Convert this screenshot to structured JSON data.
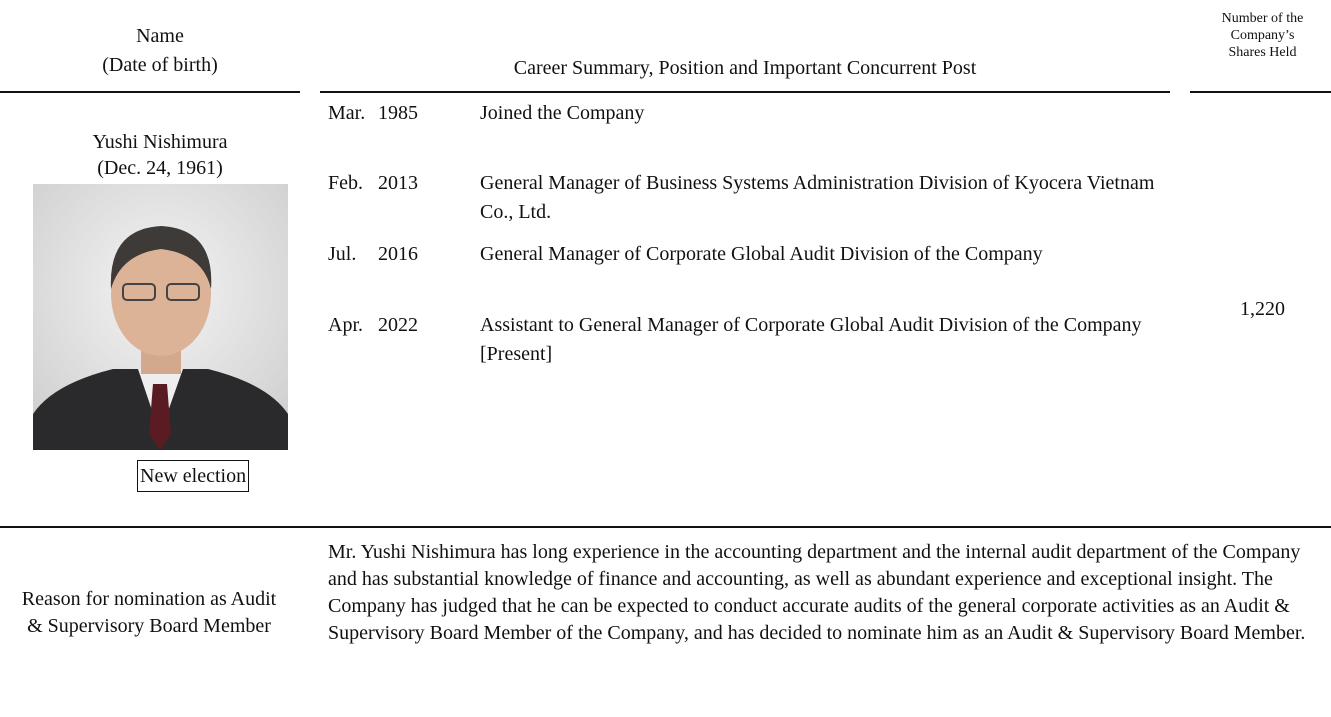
{
  "header": {
    "name": "Name",
    "date_of_birth": "(Date of birth)",
    "career": "Career Summary, Position and Important Concurrent Post",
    "shares": [
      "Number of the",
      "Company’s",
      "Shares Held"
    ]
  },
  "candidate": {
    "name": "Yushi Nishimura",
    "date_of_birth": "(Dec. 24, 1961)",
    "status": "New election",
    "career": [
      {
        "month": "Mar.",
        "year": "1985",
        "text": "Joined the Company"
      },
      {
        "month": "Feb.",
        "year": "2013",
        "text": "General Manager of Business Systems Administration Division of Kyocera Vietnam Co., Ltd."
      },
      {
        "month": "Jul.",
        "year": "2016",
        "text": "General Manager of Corporate Global Audit Division of the Company"
      },
      {
        "month": "Apr.",
        "year": "2022",
        "text": "Assistant to General Manager of Corporate Global Audit Division of the Company [Present]"
      }
    ],
    "shares": "1,220"
  },
  "reason": {
    "label": "Reason for nomination as Audit & Supervisory Board Member",
    "text": "Mr. Yushi Nishimura has long experience in the accounting department and the internal audit department of the Company and has substantial knowledge of finance and accounting, as well as abundant experience and exceptional insight. The Company has judged that he can be expected to conduct accurate audits of the general corporate activities as an Audit & Supervisory Board Member of the Company, and has decided to nominate him as an Audit & Supervisory Board Member."
  }
}
